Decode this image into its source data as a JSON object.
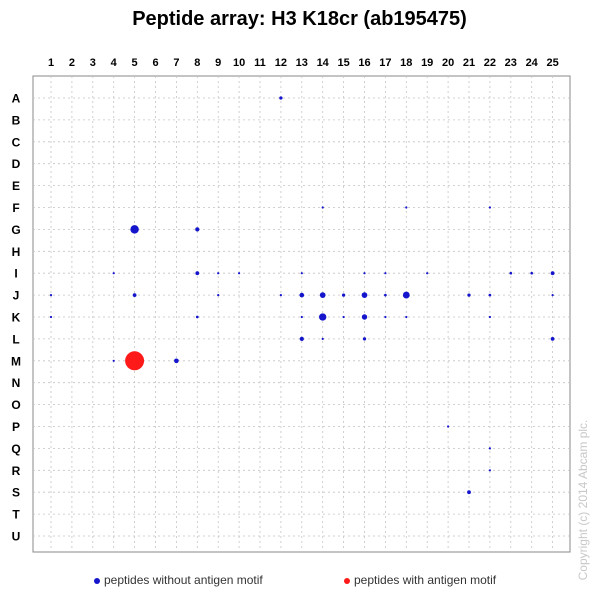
{
  "chart_data": {
    "type": "scatter",
    "title": "Peptide array: H3 K18cr (ab195475)",
    "columns": [
      "1",
      "2",
      "3",
      "4",
      "5",
      "6",
      "7",
      "8",
      "9",
      "10",
      "11",
      "12",
      "13",
      "14",
      "15",
      "16",
      "17",
      "18",
      "19",
      "20",
      "21",
      "22",
      "23",
      "24",
      "25"
    ],
    "rows": [
      "A",
      "B",
      "C",
      "D",
      "E",
      "F",
      "G",
      "H",
      "I",
      "J",
      "K",
      "L",
      "M",
      "N",
      "O",
      "P",
      "Q",
      "R",
      "S",
      "T",
      "U"
    ],
    "grid": true,
    "legend_position": "bottom",
    "legend": [
      {
        "name": "peptides without antigen motif",
        "color": "#1515cc"
      },
      {
        "name": "peptides with antigen motif",
        "color": "#ff1a1a"
      }
    ],
    "points": [
      {
        "col": 12,
        "row": "A",
        "value": 0.03,
        "motif": false
      },
      {
        "col": 14,
        "row": "F",
        "value": 0.01,
        "motif": false
      },
      {
        "col": 18,
        "row": "F",
        "value": 0.005,
        "motif": false
      },
      {
        "col": 22,
        "row": "F",
        "value": 0.005,
        "motif": false
      },
      {
        "col": 5,
        "row": "G",
        "value": 0.2,
        "motif": false
      },
      {
        "col": 8,
        "row": "G",
        "value": 0.05,
        "motif": false
      },
      {
        "col": 4,
        "row": "I",
        "value": 0.005,
        "motif": false
      },
      {
        "col": 8,
        "row": "I",
        "value": 0.04,
        "motif": false
      },
      {
        "col": 9,
        "row": "I",
        "value": 0.01,
        "motif": false
      },
      {
        "col": 10,
        "row": "I",
        "value": 0.005,
        "motif": false
      },
      {
        "col": 13,
        "row": "I",
        "value": 0.01,
        "motif": false
      },
      {
        "col": 16,
        "row": "I",
        "value": 0.01,
        "motif": false
      },
      {
        "col": 17,
        "row": "I",
        "value": 0.01,
        "motif": false
      },
      {
        "col": 19,
        "row": "I",
        "value": 0.005,
        "motif": false
      },
      {
        "col": 23,
        "row": "I",
        "value": 0.02,
        "motif": false
      },
      {
        "col": 24,
        "row": "I",
        "value": 0.02,
        "motif": false
      },
      {
        "col": 25,
        "row": "I",
        "value": 0.04,
        "motif": false
      },
      {
        "col": 1,
        "row": "J",
        "value": 0.01,
        "motif": false
      },
      {
        "col": 5,
        "row": "J",
        "value": 0.04,
        "motif": false
      },
      {
        "col": 9,
        "row": "J",
        "value": 0.01,
        "motif": false
      },
      {
        "col": 12,
        "row": "J",
        "value": 0.01,
        "motif": false
      },
      {
        "col": 13,
        "row": "J",
        "value": 0.06,
        "motif": false
      },
      {
        "col": 14,
        "row": "J",
        "value": 0.09,
        "motif": false
      },
      {
        "col": 15,
        "row": "J",
        "value": 0.03,
        "motif": false
      },
      {
        "col": 16,
        "row": "J",
        "value": 0.09,
        "motif": false
      },
      {
        "col": 17,
        "row": "J",
        "value": 0.02,
        "motif": false
      },
      {
        "col": 18,
        "row": "J",
        "value": 0.13,
        "motif": false
      },
      {
        "col": 21,
        "row": "J",
        "value": 0.03,
        "motif": false
      },
      {
        "col": 22,
        "row": "J",
        "value": 0.02,
        "motif": false
      },
      {
        "col": 25,
        "row": "J",
        "value": 0.01,
        "motif": false
      },
      {
        "col": 1,
        "row": "K",
        "value": 0.01,
        "motif": false
      },
      {
        "col": 8,
        "row": "K",
        "value": 0.02,
        "motif": false
      },
      {
        "col": 13,
        "row": "K",
        "value": 0.01,
        "motif": false
      },
      {
        "col": 14,
        "row": "K",
        "value": 0.15,
        "motif": false
      },
      {
        "col": 15,
        "row": "K",
        "value": 0.01,
        "motif": false
      },
      {
        "col": 16,
        "row": "K",
        "value": 0.08,
        "motif": false
      },
      {
        "col": 17,
        "row": "K",
        "value": 0.01,
        "motif": false
      },
      {
        "col": 18,
        "row": "K",
        "value": 0.01,
        "motif": false
      },
      {
        "col": 22,
        "row": "K",
        "value": 0.005,
        "motif": false
      },
      {
        "col": 13,
        "row": "L",
        "value": 0.05,
        "motif": false
      },
      {
        "col": 14,
        "row": "L",
        "value": 0.01,
        "motif": false
      },
      {
        "col": 16,
        "row": "L",
        "value": 0.03,
        "motif": false
      },
      {
        "col": 25,
        "row": "L",
        "value": 0.04,
        "motif": false
      },
      {
        "col": 4,
        "row": "M",
        "value": 0.01,
        "motif": false
      },
      {
        "col": 5,
        "row": "M",
        "value": 1.0,
        "motif": true
      },
      {
        "col": 7,
        "row": "M",
        "value": 0.06,
        "motif": false
      },
      {
        "col": 20,
        "row": "P",
        "value": 0.005,
        "motif": false
      },
      {
        "col": 22,
        "row": "Q",
        "value": 0.005,
        "motif": false
      },
      {
        "col": 22,
        "row": "R",
        "value": 0.005,
        "motif": false
      },
      {
        "col": 21,
        "row": "S",
        "value": 0.04,
        "motif": false
      }
    ]
  },
  "copyright": "Copyright (c) 2014 Abcam plc."
}
